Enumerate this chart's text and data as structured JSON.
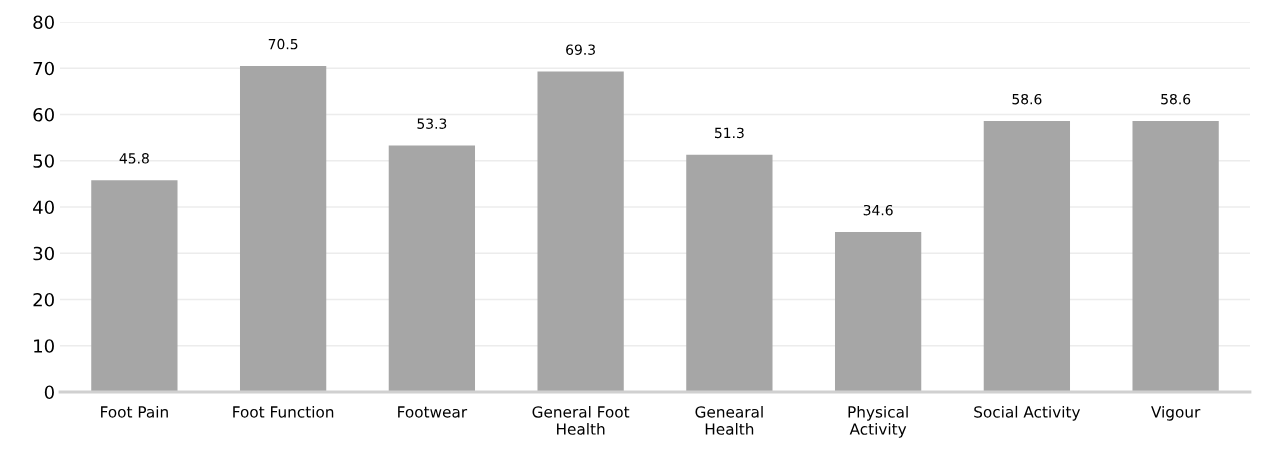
{
  "chart_data": {
    "type": "bar",
    "categories": [
      "Foot Pain",
      "Foot Function",
      "Footwear",
      "General Foot\nHealth",
      "Genearal\nHealth",
      "Physical\nActivity",
      "Social Activity",
      "Vigour"
    ],
    "values": [
      45.8,
      70.5,
      53.3,
      69.3,
      51.3,
      34.6,
      58.6,
      58.6
    ],
    "color": "#a6a6a6",
    "ylim": [
      0,
      80
    ],
    "yticks": [
      0,
      10,
      20,
      30,
      40,
      50,
      60,
      70,
      80
    ],
    "grid": "y",
    "data_labels": true
  }
}
